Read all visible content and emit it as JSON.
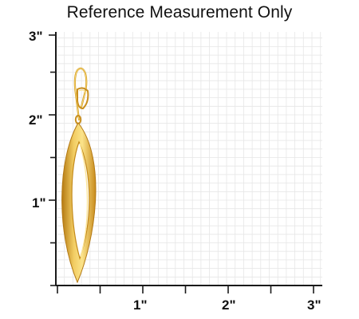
{
  "title": "Reference Measurement Only",
  "axis": {
    "y_labels": [
      "3\"",
      "2\"",
      "1\""
    ],
    "x_labels": [
      "1\"",
      "2\"",
      "3\""
    ]
  },
  "colors": {
    "grid_line": "#e6e6e6",
    "axis": "#1a1a1a",
    "gold_light": "#f8dc78",
    "gold_mid": "#e0a92c",
    "gold_dark": "#b57a12"
  },
  "image": {
    "subject": "gold-tone-elongated-marquise-drop-earring"
  }
}
